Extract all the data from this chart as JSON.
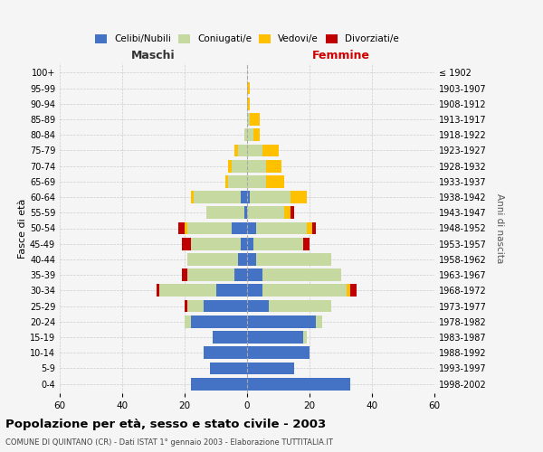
{
  "age_groups": [
    "0-4",
    "5-9",
    "10-14",
    "15-19",
    "20-24",
    "25-29",
    "30-34",
    "35-39",
    "40-44",
    "45-49",
    "50-54",
    "55-59",
    "60-64",
    "65-69",
    "70-74",
    "75-79",
    "80-84",
    "85-89",
    "90-94",
    "95-99",
    "100+"
  ],
  "birth_years": [
    "1998-2002",
    "1993-1997",
    "1988-1992",
    "1983-1987",
    "1978-1982",
    "1973-1977",
    "1968-1972",
    "1963-1967",
    "1958-1962",
    "1953-1957",
    "1948-1952",
    "1943-1947",
    "1938-1942",
    "1933-1937",
    "1928-1932",
    "1923-1927",
    "1918-1922",
    "1913-1917",
    "1908-1912",
    "1903-1907",
    "≤ 1902"
  ],
  "males": {
    "celibi": [
      18,
      12,
      14,
      11,
      18,
      14,
      10,
      4,
      3,
      2,
      5,
      1,
      2,
      0,
      0,
      0,
      0,
      0,
      0,
      0,
      0
    ],
    "coniugati": [
      0,
      0,
      0,
      0,
      2,
      5,
      18,
      15,
      16,
      16,
      14,
      12,
      15,
      6,
      5,
      3,
      1,
      0,
      0,
      0,
      0
    ],
    "vedovi": [
      0,
      0,
      0,
      0,
      0,
      0,
      0,
      0,
      0,
      0,
      1,
      0,
      1,
      1,
      1,
      1,
      0,
      0,
      0,
      0,
      0
    ],
    "divorziati": [
      0,
      0,
      0,
      0,
      0,
      1,
      1,
      2,
      0,
      3,
      2,
      0,
      0,
      0,
      0,
      0,
      0,
      0,
      0,
      0,
      0
    ]
  },
  "females": {
    "nubili": [
      33,
      15,
      20,
      18,
      22,
      7,
      5,
      5,
      3,
      2,
      3,
      0,
      1,
      0,
      0,
      0,
      0,
      0,
      0,
      0,
      0
    ],
    "coniugate": [
      0,
      0,
      0,
      1,
      2,
      20,
      27,
      25,
      24,
      16,
      16,
      12,
      13,
      6,
      6,
      5,
      2,
      1,
      0,
      0,
      0
    ],
    "vedove": [
      0,
      0,
      0,
      0,
      0,
      0,
      1,
      0,
      0,
      0,
      2,
      2,
      5,
      6,
      5,
      5,
      2,
      3,
      1,
      1,
      0
    ],
    "divorziate": [
      0,
      0,
      0,
      0,
      0,
      0,
      2,
      0,
      0,
      2,
      1,
      1,
      0,
      0,
      0,
      0,
      0,
      0,
      0,
      0,
      0
    ]
  },
  "color_celibi": "#4472c4",
  "color_coniugati": "#c5d9a0",
  "color_vedovi": "#ffc000",
  "color_divorziati": "#c00000",
  "xlim": 60,
  "title": "Popolazione per età, sesso e stato civile - 2003",
  "subtitle": "COMUNE DI QUINTANO (CR) - Dati ISTAT 1° gennaio 2003 - Elaborazione TUTTITALIA.IT",
  "ylabel_left": "Fasce di età",
  "ylabel_right": "Anni di nascita",
  "xlabel_left": "Maschi",
  "xlabel_right": "Femmine",
  "bg_color": "#f5f5f5",
  "grid_color": "#cccccc"
}
